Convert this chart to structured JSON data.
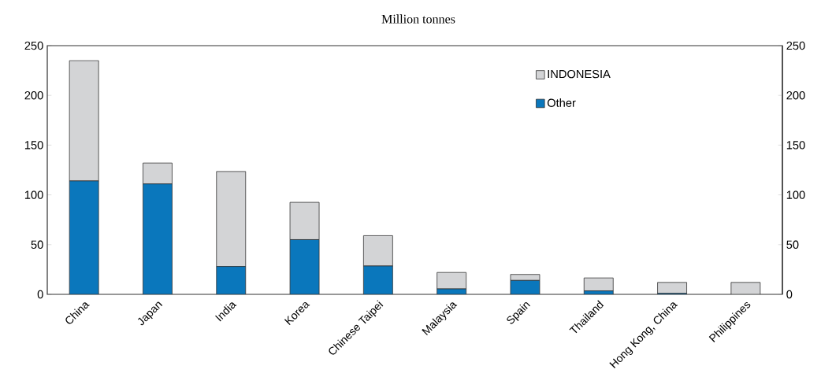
{
  "chart_data": {
    "type": "bar",
    "subtitle": "Million tonnes",
    "categories": [
      "China",
      "Japan",
      "India",
      "Korea",
      "Chinese Taipei",
      "Malaysia",
      "Spain",
      "Thailand",
      "Hong Kong, China",
      "Philippines"
    ],
    "stacked": true,
    "series": [
      {
        "name": "Other",
        "color": "#0a77bc",
        "values": [
          114,
          111,
          28,
          55,
          28.5,
          5.5,
          14,
          3.5,
          1,
          0
        ]
      },
      {
        "name": "INDONESIA",
        "color": "#d3d4d6",
        "values": [
          121,
          21,
          95.5,
          37.5,
          30.5,
          16.5,
          6,
          13,
          11,
          12
        ]
      }
    ],
    "ylim": [
      0,
      250
    ],
    "yticks": [
      0,
      50,
      100,
      150,
      200,
      250
    ],
    "y2lim": [
      0,
      250
    ],
    "y2ticks": [
      0,
      50,
      100,
      150,
      200,
      250
    ],
    "grid": false,
    "legend": "top right"
  }
}
